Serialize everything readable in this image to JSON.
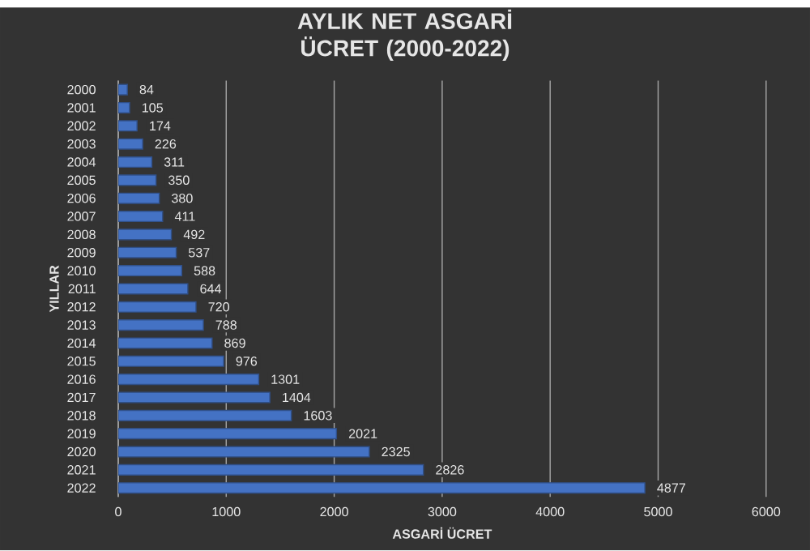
{
  "chart_data": {
    "type": "bar",
    "orientation": "horizontal",
    "title": "AYLIK NET ASGARİ ÜCRET (2000-2022)",
    "xlabel": "ASGARİ ÜCRET",
    "ylabel": "YILLAR",
    "categories": [
      "2000",
      "2001",
      "2002",
      "2003",
      "2004",
      "2005",
      "2006",
      "2007",
      "2008",
      "2009",
      "2010",
      "2011",
      "2012",
      "2013",
      "2014",
      "2015",
      "2016",
      "2017",
      "2018",
      "2019",
      "2020",
      "2021",
      "2022"
    ],
    "values": [
      84,
      105,
      174,
      226,
      311,
      350,
      380,
      411,
      492,
      537,
      588,
      644,
      720,
      788,
      869,
      976,
      1301,
      1404,
      1603,
      2021,
      2325,
      2826,
      4877
    ],
    "color": "#4472c4",
    "xlim": [
      0,
      6000
    ],
    "xticks": [
      0,
      1000,
      2000,
      3000,
      4000,
      5000,
      6000
    ],
    "grid": "x",
    "data_labels": true
  }
}
